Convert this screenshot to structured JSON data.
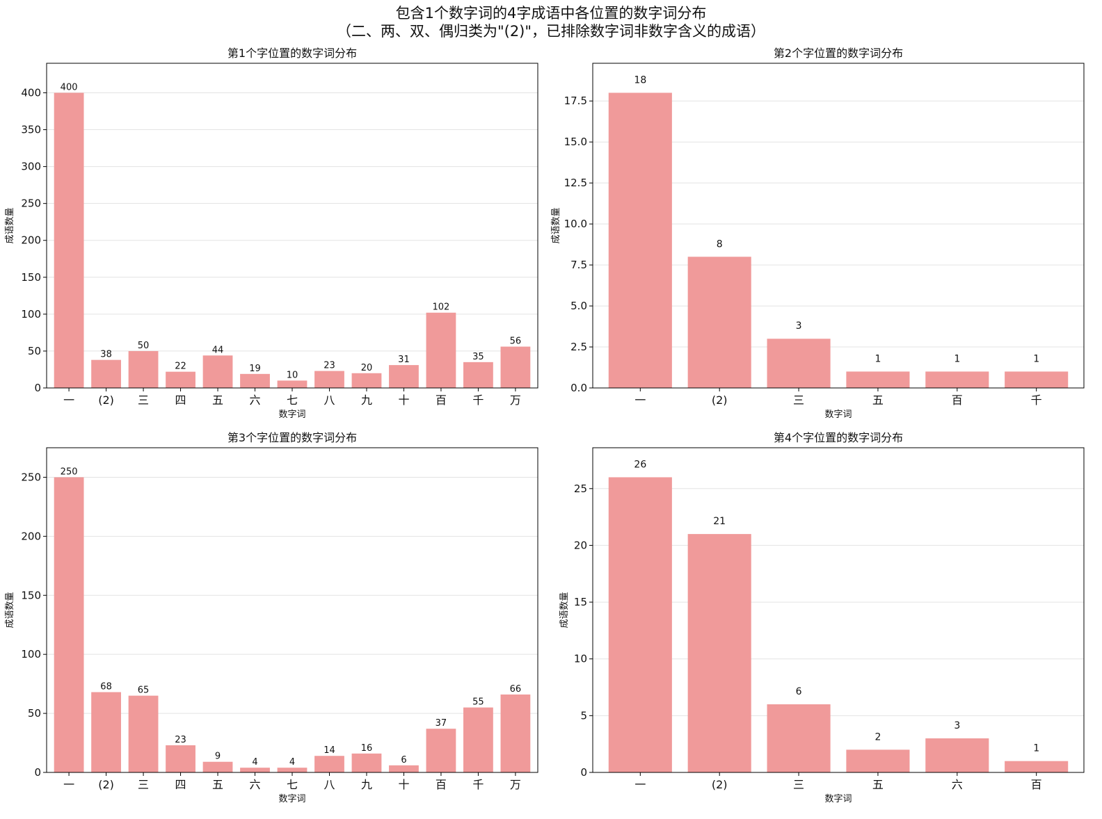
{
  "figure": {
    "title_line1": "包含1个数字词的4字成语中各位置的数字词分布",
    "title_line2": "（二、两、双、偶归类为\"(2)\"，已排除数字词非数字含义的成语）",
    "bar_color": "#f09a9a"
  },
  "chart_data": [
    {
      "type": "bar",
      "title": "第1个字位置的数字词分布",
      "xlabel": "数字词",
      "ylabel": "成语数量",
      "categories": [
        "一",
        "(2)",
        "三",
        "四",
        "五",
        "六",
        "七",
        "八",
        "九",
        "十",
        "百",
        "千",
        "万"
      ],
      "values": [
        400,
        38,
        50,
        22,
        44,
        19,
        10,
        23,
        20,
        31,
        102,
        35,
        56
      ],
      "ylim": [
        0,
        440
      ],
      "yticks": [
        0,
        50,
        100,
        150,
        200,
        250,
        300,
        350,
        400
      ],
      "grid": "y"
    },
    {
      "type": "bar",
      "title": "第2个字位置的数字词分布",
      "xlabel": "数字词",
      "ylabel": "成语数量",
      "categories": [
        "一",
        "(2)",
        "三",
        "五",
        "百",
        "千"
      ],
      "values": [
        18,
        8,
        3,
        1,
        1,
        1
      ],
      "ylim": [
        0,
        19.8
      ],
      "yticks": [
        0.0,
        2.5,
        5.0,
        7.5,
        10.0,
        12.5,
        15.0,
        17.5
      ],
      "ytick_labels": [
        "0.0",
        "2.5",
        "5.0",
        "7.5",
        "10.0",
        "12.5",
        "15.0",
        "17.5"
      ],
      "grid": "y"
    },
    {
      "type": "bar",
      "title": "第3个字位置的数字词分布",
      "xlabel": "数字词",
      "ylabel": "成语数量",
      "categories": [
        "一",
        "(2)",
        "三",
        "四",
        "五",
        "六",
        "七",
        "八",
        "九",
        "十",
        "百",
        "千",
        "万"
      ],
      "values": [
        250,
        68,
        65,
        23,
        9,
        4,
        4,
        14,
        16,
        6,
        37,
        55,
        66
      ],
      "ylim": [
        0,
        275
      ],
      "yticks": [
        0,
        50,
        100,
        150,
        200,
        250
      ],
      "grid": "y"
    },
    {
      "type": "bar",
      "title": "第4个字位置的数字词分布",
      "xlabel": "数字词",
      "ylabel": "成语数量",
      "categories": [
        "一",
        "(2)",
        "三",
        "五",
        "六",
        "百"
      ],
      "values": [
        26,
        21,
        6,
        2,
        3,
        1
      ],
      "ylim": [
        0,
        28.6
      ],
      "yticks": [
        0,
        5,
        10,
        15,
        20,
        25
      ],
      "grid": "y"
    }
  ]
}
